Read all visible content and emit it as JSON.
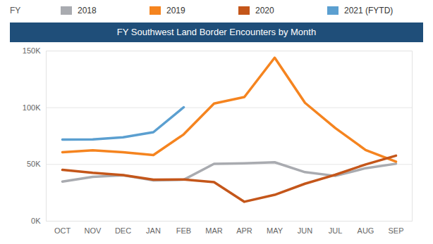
{
  "chart_data": {
    "type": "line",
    "title": "FY Southwest Land Border Encounters by Month",
    "legend_title": "FY",
    "legend": "top",
    "grid": true,
    "categories": [
      "OCT",
      "NOV",
      "DEC",
      "JAN",
      "FEB",
      "MAR",
      "APR",
      "MAY",
      "JUN",
      "JUL",
      "AUG",
      "SEP"
    ],
    "series": [
      {
        "name": "2018",
        "color": "#a9abb0",
        "values": [
          34900,
          39000,
          40500,
          36000,
          36500,
          50500,
          51000,
          51900,
          43200,
          39900,
          46700,
          50600
        ]
      },
      {
        "name": "2019",
        "color": "#f5841f",
        "values": [
          60800,
          62500,
          60800,
          58300,
          76500,
          103700,
          109400,
          144100,
          104300,
          82000,
          62700,
          52500
        ]
      },
      {
        "name": "2020",
        "color": "#c4561a",
        "values": [
          45200,
          42600,
          40600,
          36600,
          36700,
          34400,
          17100,
          23200,
          33000,
          40900,
          50000,
          57700
        ]
      },
      {
        "name": "2021 (FYTD)",
        "color": "#5b9fd0",
        "values": [
          71900,
          72100,
          73900,
          78400,
          100400,
          null,
          null,
          null,
          null,
          null,
          null,
          null
        ]
      }
    ],
    "ylim": [
      0,
      150000
    ],
    "yticks": [
      {
        "value": 0,
        "label": "0K"
      },
      {
        "value": 50000,
        "label": "50K"
      },
      {
        "value": 100000,
        "label": "100K"
      },
      {
        "value": 150000,
        "label": "150K"
      }
    ]
  }
}
